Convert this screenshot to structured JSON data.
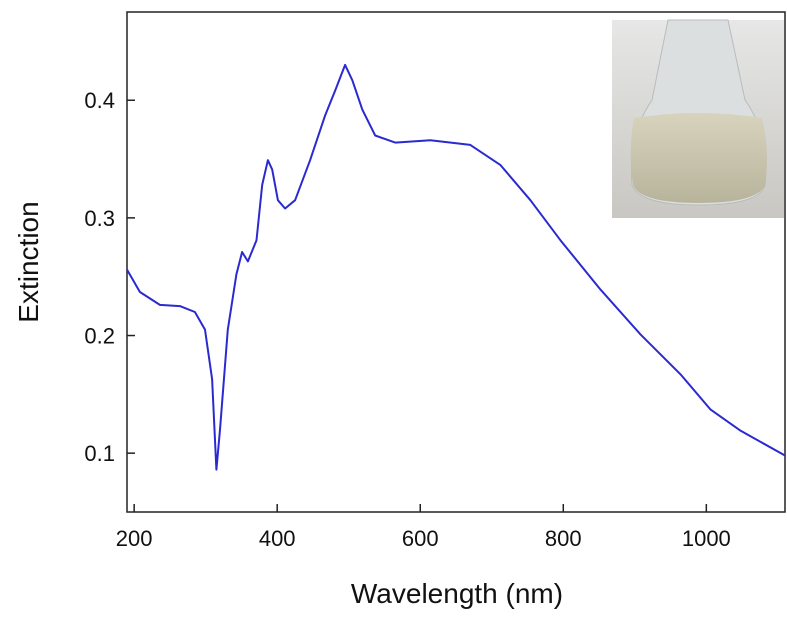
{
  "chart_data": {
    "type": "line",
    "x_label": "Wavelength (nm)",
    "y_label": "Extinction",
    "xlim": [
      190,
      1110
    ],
    "ylim": [
      0.05,
      0.475
    ],
    "xticks": [
      200,
      400,
      600,
      800,
      1000
    ],
    "yticks": [
      0.1,
      0.2,
      0.3,
      0.4
    ],
    "series": [
      {
        "color": "#2a2ad0",
        "x": [
          190,
          208,
          236,
          264,
          285,
          299,
          309,
          315,
          320,
          331,
          343,
          351,
          359,
          371,
          379,
          387,
          393,
          401,
          411,
          425,
          446,
          467,
          481,
          495,
          505,
          519,
          537,
          565,
          614,
          670,
          712,
          754,
          796,
          852,
          908,
          964,
          1006,
          1048,
          1110
        ],
        "values": [
          0.256,
          0.237,
          0.226,
          0.225,
          0.22,
          0.205,
          0.163,
          0.086,
          0.12,
          0.205,
          0.252,
          0.271,
          0.263,
          0.281,
          0.328,
          0.349,
          0.341,
          0.315,
          0.308,
          0.315,
          0.349,
          0.387,
          0.408,
          0.43,
          0.417,
          0.392,
          0.37,
          0.364,
          0.366,
          0.362,
          0.345,
          0.315,
          0.281,
          0.239,
          0.201,
          0.167,
          0.137,
          0.119,
          0.098
        ]
      }
    ]
  }
}
